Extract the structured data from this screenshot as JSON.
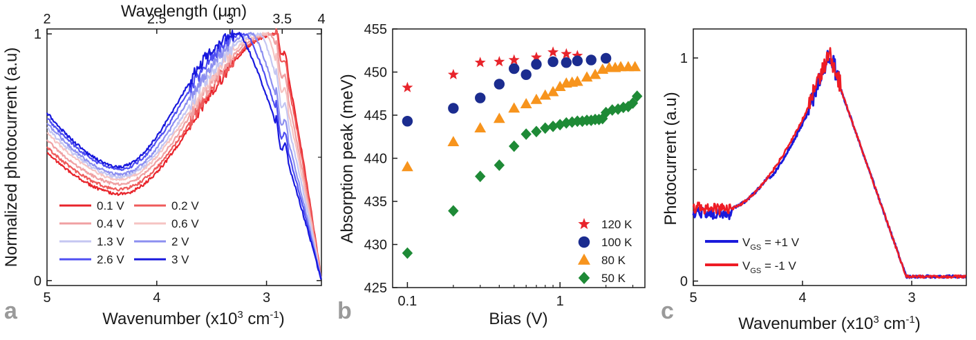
{
  "colors": {
    "axis": "#1a1a1a",
    "panel_label": "#9a9a9a"
  },
  "chart_data": [
    {
      "panel": "a",
      "type": "line",
      "xlabel": "Wavenumber (x10",
      "xlabel_sup": "3",
      "xlabel_tail": " cm",
      "xlabel_sup2": "-1",
      "xlabel_end": ")",
      "x2label": "Wavelength (μm)",
      "ylabel": "Normalized photocurrent (a.u)",
      "xlim": [
        5000,
        2500
      ],
      "ylim": [
        -0.02,
        1.02
      ],
      "xticks": [
        5000,
        4000,
        3000
      ],
      "xtick_labels": [
        "5",
        "4",
        "3"
      ],
      "x2ticks": [
        2,
        2.5,
        3,
        3.5,
        4
      ],
      "x2tick_labels": [
        "2",
        "2.5",
        "3",
        "3.5",
        "4"
      ],
      "yticks": [
        0,
        1
      ],
      "ytick_labels": [
        "0",
        "1"
      ],
      "legend_position": "bottom-left",
      "series": [
        {
          "name": "0.1 V",
          "color": "#e8242b",
          "trough": 0.35,
          "peak_x": 2900,
          "left": 0.52
        },
        {
          "name": "0.2 V",
          "color": "#ef5a5a",
          "trough": 0.37,
          "peak_x": 2920,
          "left": 0.54
        },
        {
          "name": "0.4 V",
          "color": "#f0a0a2",
          "trough": 0.39,
          "peak_x": 2960,
          "left": 0.57
        },
        {
          "name": "0.6 V",
          "color": "#f5c3c2",
          "trough": 0.41,
          "peak_x": 3000,
          "left": 0.6
        },
        {
          "name": "1.3 V",
          "color": "#c4c6f2",
          "trough": 0.42,
          "peak_x": 3050,
          "left": 0.62
        },
        {
          "name": "2 V",
          "color": "#8c8ff0",
          "trough": 0.43,
          "peak_x": 3120,
          "left": 0.64
        },
        {
          "name": "2.6 V",
          "color": "#4f4ff2",
          "trough": 0.45,
          "peak_x": 3180,
          "left": 0.66
        },
        {
          "name": "3 V",
          "color": "#1818dd",
          "trough": 0.46,
          "peak_x": 3250,
          "left": 0.68
        }
      ]
    },
    {
      "panel": "b",
      "type": "scatter",
      "xlabel": "Bias (V)",
      "ylabel": "Absorption peak (meV)",
      "xscale": "log",
      "xlim": [
        0.08,
        3.6
      ],
      "ylim": [
        425,
        455
      ],
      "xticks": [
        0.1,
        1
      ],
      "xtick_labels": [
        "0.1",
        "1"
      ],
      "yticks": [
        425,
        430,
        435,
        440,
        445,
        450,
        455
      ],
      "ytick_labels": [
        "425",
        "430",
        "435",
        "440",
        "445",
        "450",
        "455"
      ],
      "legend_position": "bottom-right",
      "series": [
        {
          "name": "120 K",
          "marker": "star",
          "color": "#e8242b",
          "x": [
            0.1,
            0.2,
            0.3,
            0.4,
            0.5,
            0.7,
            0.9,
            1.1,
            1.3
          ],
          "y": [
            448.2,
            449.7,
            451.1,
            451.2,
            451.4,
            451.7,
            452.3,
            452.1,
            451.9
          ]
        },
        {
          "name": "100 K",
          "marker": "circle",
          "color": "#1b2c8f",
          "x": [
            0.1,
            0.2,
            0.3,
            0.4,
            0.5,
            0.6,
            0.7,
            0.9,
            1.1,
            1.3,
            1.6,
            2.0
          ],
          "y": [
            444.3,
            445.8,
            447.0,
            448.6,
            450.4,
            449.7,
            450.9,
            451.2,
            451.1,
            451.3,
            451.4,
            451.6
          ]
        },
        {
          "name": "80 K",
          "marker": "triangle",
          "color": "#f7941d",
          "x": [
            0.1,
            0.2,
            0.3,
            0.4,
            0.5,
            0.6,
            0.7,
            0.8,
            0.9,
            1.0,
            1.1,
            1.2,
            1.3,
            1.5,
            1.7,
            1.9,
            2.1,
            2.3,
            2.5,
            2.8,
            3.1
          ],
          "y": [
            439.0,
            441.9,
            443.5,
            444.6,
            445.8,
            446.3,
            446.8,
            447.3,
            447.7,
            448.3,
            448.7,
            448.8,
            448.9,
            449.4,
            449.7,
            450.3,
            450.5,
            450.5,
            450.6,
            450.6,
            450.6
          ]
        },
        {
          "name": "50 K",
          "marker": "diamond",
          "color": "#1e8a36",
          "x": [
            0.1,
            0.2,
            0.3,
            0.4,
            0.5,
            0.6,
            0.7,
            0.8,
            0.9,
            1.0,
            1.1,
            1.2,
            1.3,
            1.4,
            1.5,
            1.6,
            1.7,
            1.8,
            1.9,
            2.0,
            2.2,
            2.4,
            2.6,
            2.8,
            3.0,
            3.2
          ],
          "y": [
            429.0,
            433.9,
            437.9,
            439.2,
            441.4,
            442.8,
            443.1,
            443.5,
            443.7,
            443.9,
            444.1,
            444.2,
            444.3,
            444.3,
            444.4,
            444.4,
            444.5,
            444.5,
            444.6,
            445.3,
            445.6,
            445.7,
            445.9,
            446.0,
            446.4,
            447.2
          ]
        }
      ]
    },
    {
      "panel": "c",
      "type": "line",
      "xlabel": "Wavenumber (x10",
      "xlabel_sup": "3",
      "xlabel_tail": " cm",
      "xlabel_sup2": "-1",
      "xlabel_end": ")",
      "ylabel": "Photocurrent (a.u)",
      "xlim": [
        5000,
        2500
      ],
      "ylim": [
        -0.02,
        1.13
      ],
      "xticks": [
        5000,
        4000,
        3000
      ],
      "xtick_labels": [
        "5",
        "4",
        "3"
      ],
      "yticks": [
        0,
        1
      ],
      "ytick_labels": [
        "0",
        "1"
      ],
      "legend_position": "bottom-left",
      "series": [
        {
          "name_main": "V",
          "name_sub": "GS",
          "name_tail": " = +1 V",
          "color": "#1a1adb"
        },
        {
          "name_main": "V",
          "name_sub": "GS",
          "name_tail": " = -1 V",
          "color": "#ee1c25"
        }
      ]
    }
  ]
}
